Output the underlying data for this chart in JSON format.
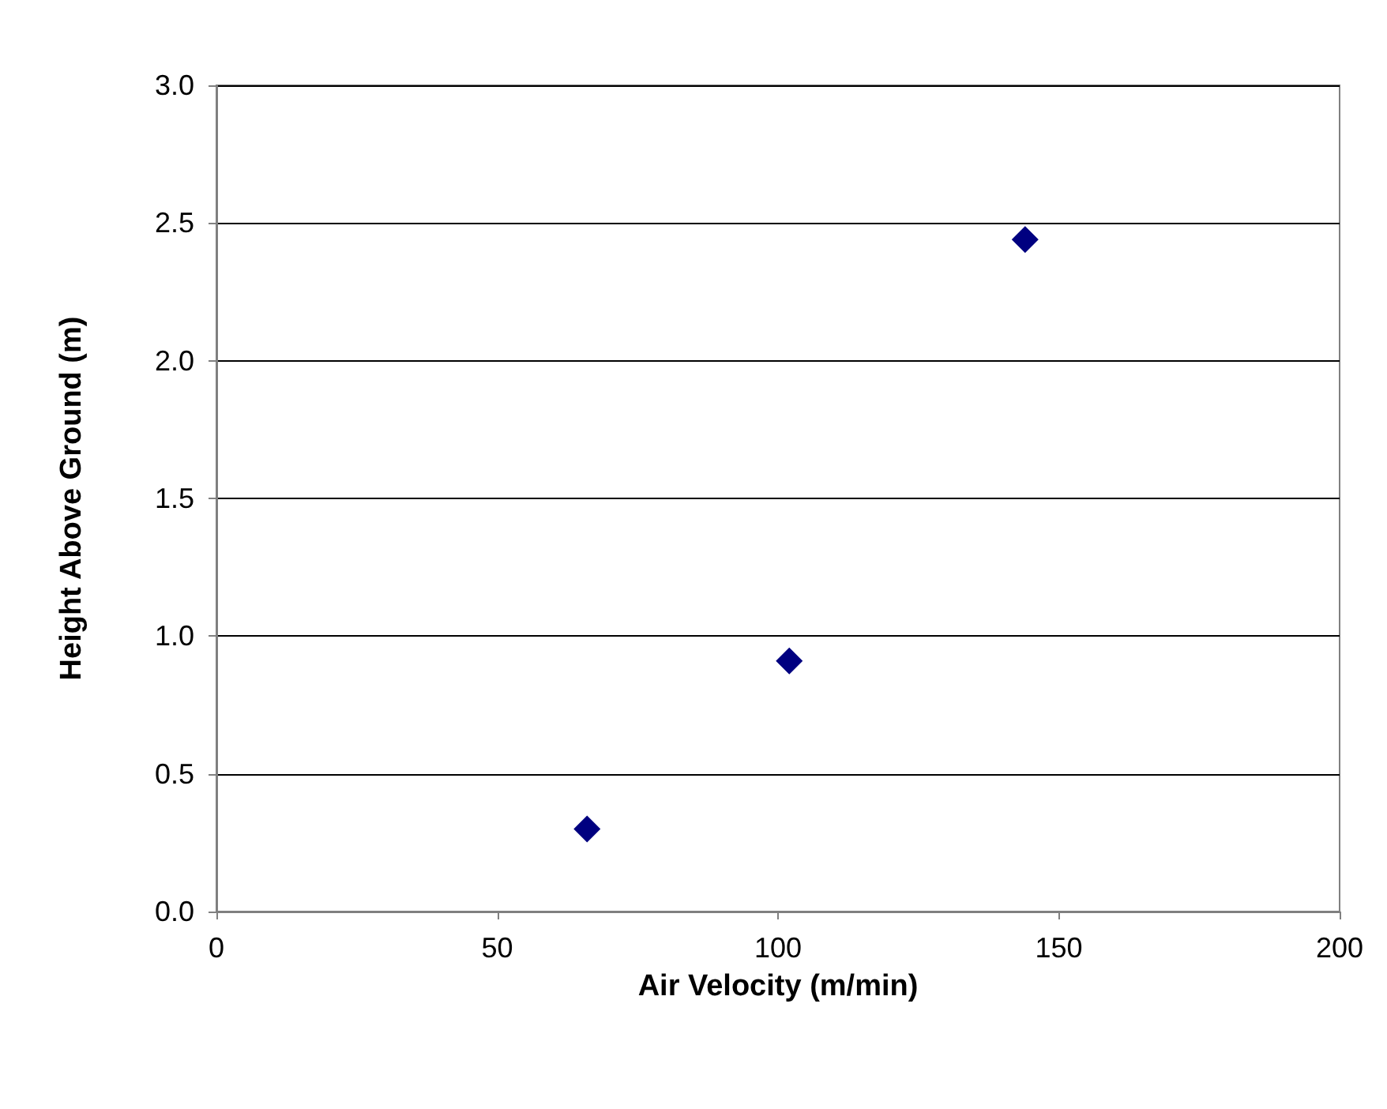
{
  "chart_data": {
    "type": "scatter",
    "xlabel": "Air Velocity (m/min)",
    "ylabel": "Height Above Ground (m)",
    "x": [
      66,
      102,
      144
    ],
    "series": [
      {
        "color": "#000080",
        "values": [
          0.3,
          0.91,
          2.44
        ]
      }
    ],
    "xlim": [
      0,
      200
    ],
    "xticks": [
      0,
      50,
      100,
      150,
      200
    ],
    "ylim": [
      0,
      3.0
    ],
    "yticks": [
      {
        "value": 0,
        "label": "0.0"
      },
      {
        "value": 0.5,
        "label": "0.5"
      },
      {
        "value": 1,
        "label": "1.0"
      },
      {
        "value": 1.5,
        "label": "1.5"
      },
      {
        "value": 2,
        "label": "2.0"
      },
      {
        "value": 2.5,
        "label": "2.5"
      },
      {
        "value": 3,
        "label": "3.0"
      }
    ],
    "grid": "y",
    "marker": "diamond"
  }
}
